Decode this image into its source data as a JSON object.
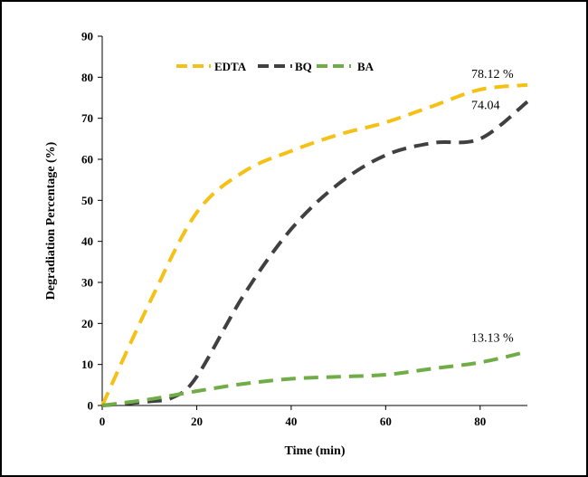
{
  "chart_data": {
    "type": "line",
    "xlabel": "Time (min)",
    "ylabel": "Degradiation Percentage (%)",
    "xlim": [
      0,
      90
    ],
    "ylim": [
      0,
      90
    ],
    "x_ticks": [
      0,
      20,
      40,
      60,
      80
    ],
    "y_ticks": [
      0,
      10,
      20,
      30,
      40,
      50,
      60,
      70,
      80,
      90
    ],
    "grid": false,
    "legend_position": "top-left",
    "series": [
      {
        "name": "EDTA",
        "color": "#F5C116",
        "x": [
          0,
          10,
          20,
          30,
          40,
          50,
          60,
          70,
          80,
          90
        ],
        "y": [
          0,
          25,
          47,
          57,
          62,
          66,
          69,
          73,
          77,
          78.12
        ]
      },
      {
        "name": "BQ",
        "color": "#404040",
        "x": [
          0,
          10,
          15,
          20,
          30,
          40,
          50,
          60,
          70,
          80,
          90
        ],
        "y": [
          0,
          1,
          2,
          7,
          27,
          43,
          54,
          61,
          64,
          65,
          74.04
        ]
      },
      {
        "name": "BA",
        "color": "#70AD47",
        "x": [
          0,
          10,
          20,
          30,
          40,
          50,
          60,
          70,
          80,
          90
        ],
        "y": [
          0,
          1.5,
          3.5,
          5.3,
          6.5,
          7.0,
          7.5,
          9.0,
          10.5,
          13.13
        ]
      }
    ],
    "annotations": [
      {
        "text": "78.12 %",
        "x": 90,
        "y": 78.12,
        "series": "EDTA"
      },
      {
        "text": "74.04",
        "x": 90,
        "y": 74.04,
        "series": "BQ"
      },
      {
        "text": "13.13 %",
        "x": 90,
        "y": 13.13,
        "series": "BA"
      }
    ]
  }
}
